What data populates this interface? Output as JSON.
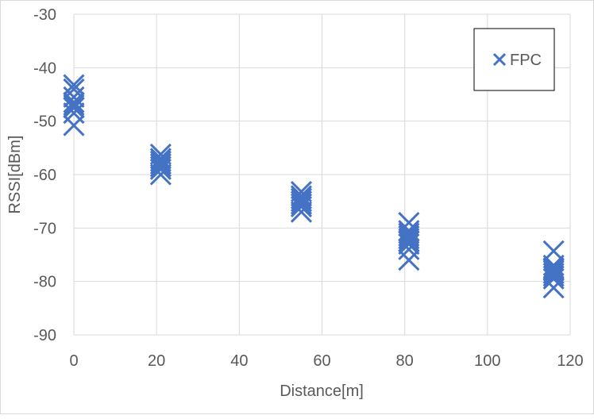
{
  "chart_data": {
    "type": "scatter",
    "xlabel": "Distance[m]",
    "ylabel": "RSSI[dBm]",
    "xlim": [
      0,
      120
    ],
    "ylim": [
      -90,
      -30
    ],
    "xticks": [
      "0",
      "20",
      "40",
      "60",
      "80",
      "100",
      "120"
    ],
    "yticks": [
      "-30",
      "-40",
      "-50",
      "-60",
      "-70",
      "-80",
      "-90"
    ],
    "grid": true,
    "legend_position": "top-right",
    "marker": "x",
    "color": "#4472C4",
    "series": [
      {
        "name": "FPC",
        "points": [
          [
            0,
            -43.2
          ],
          [
            0,
            -44
          ],
          [
            0,
            -45.5
          ],
          [
            0,
            -46.5
          ],
          [
            0,
            -47
          ],
          [
            0,
            -47.5
          ],
          [
            0,
            -48.5
          ],
          [
            0,
            -50.8
          ],
          [
            21,
            -56.2
          ],
          [
            21,
            -57
          ],
          [
            21,
            -57.5
          ],
          [
            21,
            -58
          ],
          [
            21,
            -58.5
          ],
          [
            21,
            -59
          ],
          [
            21,
            -60
          ],
          [
            55,
            -63.2
          ],
          [
            55,
            -64
          ],
          [
            55,
            -64.5
          ],
          [
            55,
            -65
          ],
          [
            55,
            -65.5
          ],
          [
            55,
            -66
          ],
          [
            55,
            -67
          ],
          [
            81,
            -69
          ],
          [
            81,
            -70.5
          ],
          [
            81,
            -71
          ],
          [
            81,
            -71.5
          ],
          [
            81,
            -72
          ],
          [
            81,
            -72.5
          ],
          [
            81,
            -73
          ],
          [
            81,
            -74
          ],
          [
            81,
            -76
          ],
          [
            116,
            -74.3
          ],
          [
            116,
            -77
          ],
          [
            116,
            -77.5
          ],
          [
            116,
            -78
          ],
          [
            116,
            -78.5
          ],
          [
            116,
            -79
          ],
          [
            116,
            -79.5
          ],
          [
            116,
            -81.2
          ]
        ]
      }
    ]
  }
}
